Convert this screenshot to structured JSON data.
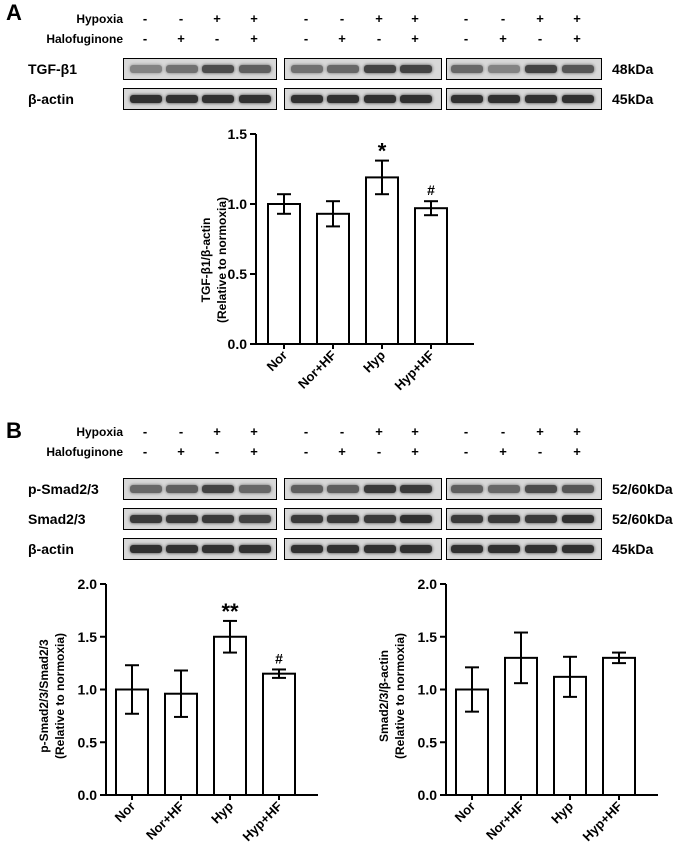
{
  "panelA": {
    "letter": "A",
    "conditions": [
      {
        "label": "Hypoxia",
        "signs": [
          "-",
          "-",
          "+",
          "+",
          "-",
          "-",
          "+",
          "+",
          "-",
          "-",
          "+",
          "+"
        ]
      },
      {
        "label": "Halofuginone",
        "signs": [
          "-",
          "+",
          "-",
          "+",
          "-",
          "+",
          "-",
          "+",
          "-",
          "+",
          "-",
          "+"
        ]
      }
    ],
    "blots": [
      {
        "label": "TGF-β1",
        "kda": "48kDa",
        "intensity": [
          0.45,
          0.55,
          0.75,
          0.65,
          0.55,
          0.6,
          0.8,
          0.8,
          0.6,
          0.45,
          0.8,
          0.7
        ]
      },
      {
        "label": "β-actin",
        "kda": "45kDa",
        "intensity": [
          0.9,
          0.9,
          0.9,
          0.9,
          0.9,
          0.9,
          0.9,
          0.9,
          0.9,
          0.9,
          0.9,
          0.9
        ]
      }
    ]
  },
  "panelB": {
    "letter": "B",
    "conditions": [
      {
        "label": "Hypoxia",
        "signs": [
          "-",
          "-",
          "+",
          "+",
          "-",
          "-",
          "+",
          "+",
          "-",
          "-",
          "+",
          "+"
        ]
      },
      {
        "label": "Halofuginone",
        "signs": [
          "-",
          "+",
          "-",
          "+",
          "-",
          "+",
          "-",
          "+",
          "-",
          "+",
          "-",
          "+"
        ]
      }
    ],
    "blots": [
      {
        "label": "p-Smad2/3",
        "kda": "52/60kDa",
        "intensity": [
          0.6,
          0.65,
          0.8,
          0.6,
          0.65,
          0.65,
          0.85,
          0.85,
          0.65,
          0.6,
          0.75,
          0.7
        ]
      },
      {
        "label": "Smad2/3",
        "kda": "52/60kDa",
        "intensity": [
          0.85,
          0.85,
          0.85,
          0.8,
          0.85,
          0.85,
          0.85,
          0.9,
          0.85,
          0.85,
          0.85,
          0.9
        ]
      },
      {
        "label": "β-actin",
        "kda": "45kDa",
        "intensity": [
          0.9,
          0.9,
          0.9,
          0.9,
          0.9,
          0.9,
          0.9,
          0.9,
          0.9,
          0.9,
          0.9,
          0.9
        ]
      }
    ]
  },
  "chart_data": [
    {
      "type": "bar",
      "title": "",
      "ylabel_line1": "TGF-β1/β-actin",
      "ylabel_line2": "(Relative to normoxia)",
      "categories": [
        "Nor",
        "Nor+HF",
        "Hyp",
        "Hyp+HF"
      ],
      "values": [
        1.0,
        0.93,
        1.19,
        0.97
      ],
      "errors": [
        0.07,
        0.09,
        0.12,
        0.05
      ],
      "annotations": [
        "",
        "",
        "*",
        "#"
      ],
      "ylim": [
        0,
        1.5
      ],
      "yticks": [
        "0.0",
        "0.5",
        "1.0",
        "1.5"
      ],
      "yticks_values": [
        0,
        0.5,
        1.0,
        1.5
      ]
    },
    {
      "type": "bar",
      "title": "",
      "ylabel_line1": "p-Smad2/3/Smad2/3",
      "ylabel_line2": "(Relative to normoxia)",
      "categories": [
        "Nor",
        "Nor+HF",
        "Hyp",
        "Hyp+HF"
      ],
      "values": [
        1.0,
        0.96,
        1.5,
        1.15
      ],
      "errors": [
        0.23,
        0.22,
        0.15,
        0.04
      ],
      "annotations": [
        "",
        "",
        "**",
        "#"
      ],
      "ylim": [
        0,
        2.0
      ],
      "yticks": [
        "0.0",
        "0.5",
        "1.0",
        "1.5",
        "2.0"
      ],
      "yticks_values": [
        0,
        0.5,
        1.0,
        1.5,
        2.0
      ]
    },
    {
      "type": "bar",
      "title": "",
      "ylabel_line1": "Smad2/3/β-actin",
      "ylabel_line2": "(Relative to normoxia)",
      "categories": [
        "Nor",
        "Nor+HF",
        "Hyp",
        "Hyp+HF"
      ],
      "values": [
        1.0,
        1.3,
        1.12,
        1.3
      ],
      "errors": [
        0.21,
        0.24,
        0.19,
        0.05
      ],
      "annotations": [
        "",
        "",
        "",
        ""
      ],
      "ylim": [
        0,
        2.0
      ],
      "yticks": [
        "0.0",
        "0.5",
        "1.0",
        "1.5",
        "2.0"
      ],
      "yticks_values": [
        0,
        0.5,
        1.0,
        1.5,
        2.0
      ]
    }
  ]
}
